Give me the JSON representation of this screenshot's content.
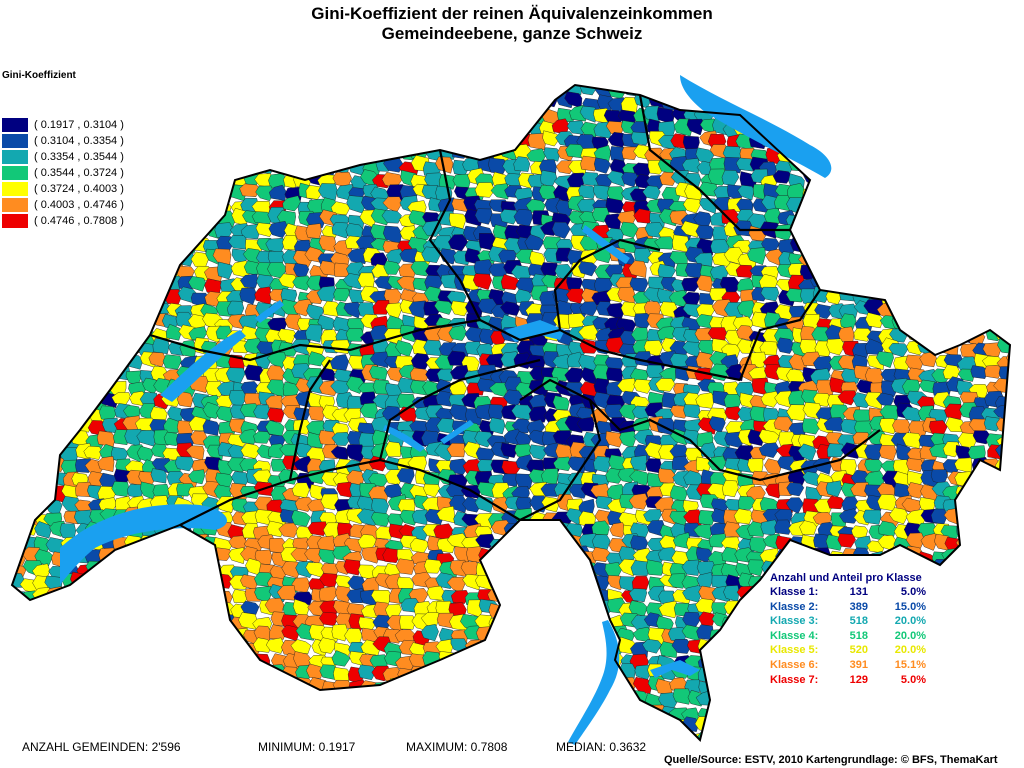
{
  "title": {
    "line1": "Gini-Koeffizient der reinen Äquivalenzeinkommen",
    "line2": "Gemeindeebene, ganze Schweiz"
  },
  "legend": {
    "title": "Gini-Koeffizient",
    "classes": [
      {
        "label": "( 0.1917 , 0.3104 )",
        "color": "#000080"
      },
      {
        "label": "( 0.3104 , 0.3354 )",
        "color": "#0a4aa8"
      },
      {
        "label": "( 0.3354 , 0.3544 )",
        "color": "#13a8b0"
      },
      {
        "label": "( 0.3544 , 0.3724 )",
        "color": "#12c878"
      },
      {
        "label": "( 0.3724 , 0.4003 )",
        "color": "#ffff00"
      },
      {
        "label": "( 0.4003 , 0.4746 )",
        "color": "#ff8c20"
      },
      {
        "label": "( 0.4746 , 0.7808 )",
        "color": "#ee0000"
      }
    ]
  },
  "stats": {
    "title": "Anzahl und Anteil pro Klasse",
    "rows": [
      {
        "label": "Klasse  1:",
        "count": "131",
        "share": "5.0%",
        "color": "#000080"
      },
      {
        "label": "Klasse  2:",
        "count": "389",
        "share": "15.0%",
        "color": "#0a4aa8"
      },
      {
        "label": "Klasse  3:",
        "count": "518",
        "share": "20.0%",
        "color": "#13a8b0"
      },
      {
        "label": "Klasse  4:",
        "count": "518",
        "share": "20.0%",
        "color": "#12c878"
      },
      {
        "label": "Klasse  5:",
        "count": "520",
        "share": "20.0%",
        "color": "#e8e800"
      },
      {
        "label": "Klasse  6:",
        "count": "391",
        "share": "15.1%",
        "color": "#ff8c20"
      },
      {
        "label": "Klasse  7:",
        "count": "129",
        "share": "5.0%",
        "color": "#ee0000"
      }
    ]
  },
  "footer": {
    "count": "ANZAHL GEMEINDEN: 2'596",
    "min": "MINIMUM: 0.1917",
    "max": "MAXIMUM: 0.7808",
    "median": "MEDIAN: 0.3632"
  },
  "credit": "Quelle/Source: ESTV, 2010 Kartengrundlage: © BFS, ThemaKart",
  "lake_color": "#1aa0f0",
  "border_color": "#000000"
}
